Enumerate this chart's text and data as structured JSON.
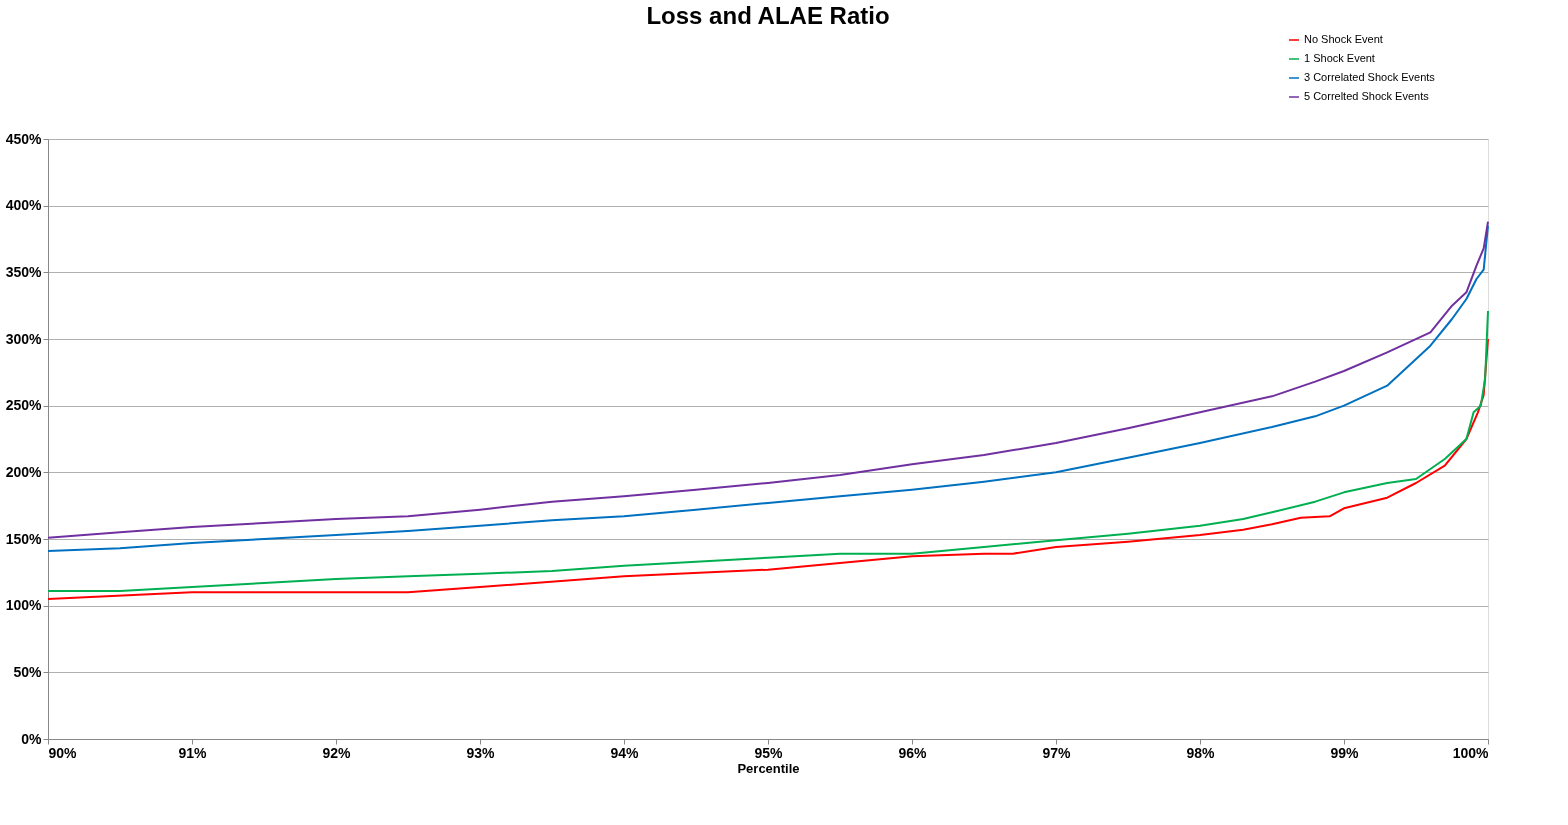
{
  "chart_data": {
    "type": "line",
    "title": "Loss and ALAE Ratio",
    "xlabel": "Percentile",
    "xlim": [
      90,
      100
    ],
    "ylim": [
      0,
      450
    ],
    "xticks": [
      {
        "value": 90,
        "label": "90%"
      },
      {
        "value": 91,
        "label": "91%"
      },
      {
        "value": 92,
        "label": "92%"
      },
      {
        "value": 93,
        "label": "93%"
      },
      {
        "value": 94,
        "label": "94%"
      },
      {
        "value": 95,
        "label": "95%"
      },
      {
        "value": 96,
        "label": "96%"
      },
      {
        "value": 97,
        "label": "97%"
      },
      {
        "value": 98,
        "label": "98%"
      },
      {
        "value": 99,
        "label": "99%"
      },
      {
        "value": 100,
        "label": "100%"
      }
    ],
    "yticks": [
      {
        "value": 0,
        "label": "0%"
      },
      {
        "value": 50,
        "label": "50%"
      },
      {
        "value": 100,
        "label": "100%"
      },
      {
        "value": 150,
        "label": "150%"
      },
      {
        "value": 200,
        "label": "200%"
      },
      {
        "value": 250,
        "label": "250%"
      },
      {
        "value": 300,
        "label": "300%"
      },
      {
        "value": 350,
        "label": "350%"
      },
      {
        "value": 400,
        "label": "400%"
      },
      {
        "value": 450,
        "label": "450%"
      }
    ],
    "grid": "y",
    "legend": "top right",
    "marker": "none",
    "line_style": "solid",
    "series": [
      {
        "name": "No Shock Event",
        "color": "#ff0000",
        "x": [
          90,
          91,
          92,
          92.5,
          93,
          94,
          95,
          95.5,
          96,
          96.5,
          96.7,
          97,
          97.5,
          98,
          98.3,
          98.5,
          98.7,
          98.9,
          99,
          99.3,
          99.5,
          99.7,
          99.85,
          99.93,
          99.97,
          100
        ],
        "values": [
          105,
          110,
          110,
          110,
          114,
          122,
          127,
          132,
          137,
          139,
          139,
          144,
          148,
          153,
          157,
          161,
          166,
          167,
          173,
          181,
          192,
          205,
          225,
          245,
          258,
          300
        ]
      },
      {
        "name": "1 Shock Event",
        "color": "#00b050",
        "x": [
          90,
          90.5,
          91,
          91.5,
          92,
          92.5,
          93,
          93.5,
          94,
          94.5,
          95,
          95.5,
          96,
          96.5,
          97,
          97.5,
          98,
          98.3,
          98.5,
          98.8,
          99,
          99.3,
          99.5,
          99.7,
          99.85,
          99.9,
          99.95,
          99.98,
          100
        ],
        "values": [
          111,
          111,
          114,
          117,
          120,
          122,
          124,
          126,
          130,
          133,
          136,
          139,
          139,
          144,
          149,
          154,
          160,
          165,
          170,
          178,
          185,
          192,
          195,
          210,
          225,
          245,
          250,
          270,
          321
        ]
      },
      {
        "name": "3 Correlated Shock Events",
        "color": "#0070c0",
        "x": [
          90,
          90.5,
          91,
          91.5,
          92,
          92.5,
          93,
          93.5,
          94,
          94.5,
          95,
          95.5,
          96,
          96.5,
          97,
          97.5,
          98,
          98.5,
          98.8,
          99,
          99.3,
          99.45,
          99.6,
          99.75,
          99.85,
          99.92,
          99.97,
          100
        ],
        "values": [
          141,
          143,
          147,
          150,
          153,
          156,
          160,
          164,
          167,
          172,
          177,
          182,
          187,
          193,
          200,
          211,
          222,
          234,
          242,
          250,
          265,
          280,
          295,
          315,
          330,
          345,
          352,
          385
        ]
      },
      {
        "name": "5 Correlted Shock Events",
        "color": "#7030a0",
        "x": [
          90,
          90.5,
          91,
          91.5,
          92,
          92.5,
          93,
          93.5,
          94,
          94.5,
          95,
          95.5,
          96,
          96.5,
          97,
          97.5,
          98,
          98.5,
          98.8,
          99,
          99.3,
          99.6,
          99.75,
          99.85,
          99.92,
          99.97,
          100
        ],
        "values": [
          151,
          155,
          159,
          162,
          165,
          167,
          172,
          178,
          182,
          187,
          192,
          198,
          206,
          213,
          222,
          233,
          245,
          257,
          268,
          276,
          290,
          305,
          325,
          335,
          355,
          368,
          388
        ]
      }
    ]
  }
}
